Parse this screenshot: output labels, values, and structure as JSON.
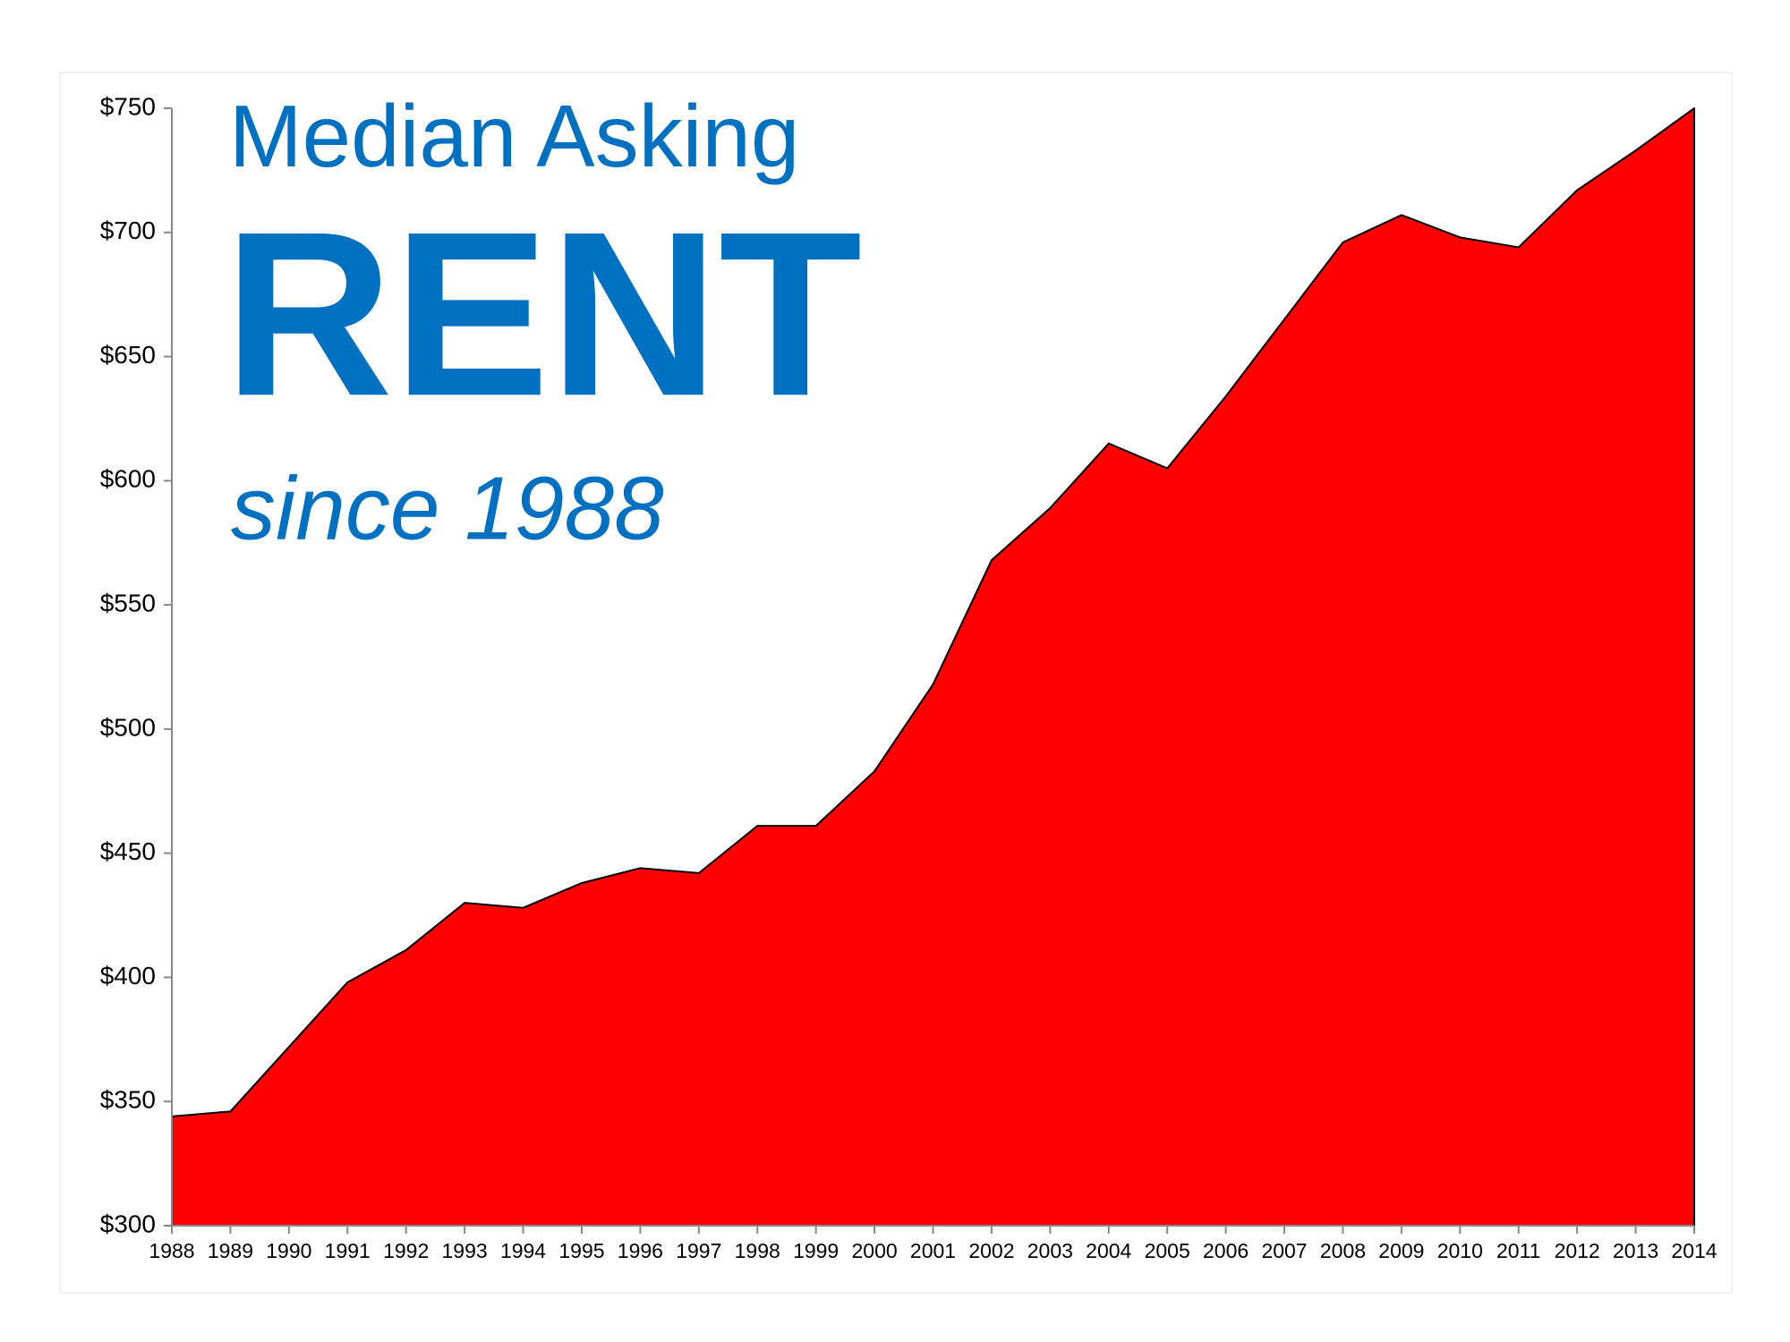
{
  "chart_data": {
    "type": "area",
    "title": [
      "Median Asking",
      "RENT",
      "since 1988"
    ],
    "categories": [
      "1988",
      "1989",
      "1990",
      "1991",
      "1992",
      "1993",
      "1994",
      "1995",
      "1996",
      "1997",
      "1998",
      "1999",
      "2000",
      "2001",
      "2002",
      "2003",
      "2004",
      "2005",
      "2006",
      "2007",
      "2008",
      "2009",
      "2010",
      "2011",
      "2012",
      "2013",
      "2014"
    ],
    "values": [
      344,
      346,
      372,
      398,
      411,
      430,
      428,
      438,
      444,
      442,
      461,
      461,
      483,
      518,
      568,
      589,
      615,
      605,
      634,
      665,
      696,
      707,
      698,
      694,
      717,
      733,
      750
    ],
    "color": "#ff0000",
    "title_color": "#0070c0",
    "ylim": [
      300,
      750
    ],
    "yticks": [
      {
        "value": 300,
        "label": "$300"
      },
      {
        "value": 350,
        "label": "$350"
      },
      {
        "value": 400,
        "label": "$400"
      },
      {
        "value": 450,
        "label": "$450"
      },
      {
        "value": 500,
        "label": "$500"
      },
      {
        "value": 550,
        "label": "$550"
      },
      {
        "value": 600,
        "label": "$600"
      },
      {
        "value": 650,
        "label": "$650"
      },
      {
        "value": 700,
        "label": "$700"
      },
      {
        "value": 750,
        "label": "$750"
      }
    ],
    "grid": false
  }
}
